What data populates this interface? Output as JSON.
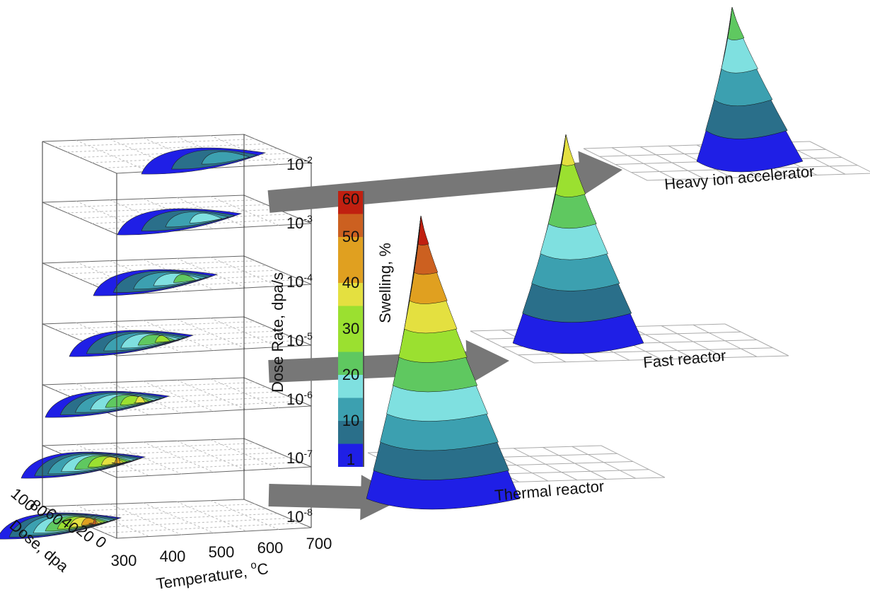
{
  "dose_rate_axis": {
    "label": "Dose Rate, dpa/s",
    "ticks": [
      {
        "base": "10",
        "exp": "-2"
      },
      {
        "base": "10",
        "exp": "-3"
      },
      {
        "base": "10",
        "exp": "-4"
      },
      {
        "base": "10",
        "exp": "-5"
      },
      {
        "base": "10",
        "exp": "-6"
      },
      {
        "base": "10",
        "exp": "-7"
      },
      {
        "base": "10",
        "exp": "-8"
      }
    ]
  },
  "temperature_axis": {
    "label": {
      "text": "Temperature, ",
      "sup": "o",
      "unit": "C"
    },
    "ticks": [
      300,
      400,
      500,
      600,
      700
    ]
  },
  "dose_axis": {
    "label": "Dose, dpa",
    "ticks": [
      100,
      80,
      60,
      40,
      20,
      0
    ]
  },
  "colorbar": {
    "label": "Swelling, %",
    "ticks": [
      60,
      50,
      40,
      30,
      20,
      10,
      1
    ]
  },
  "regimes": [
    "Heavy ion accelerator",
    "Fast reactor",
    "Thermal reactor"
  ]
}
